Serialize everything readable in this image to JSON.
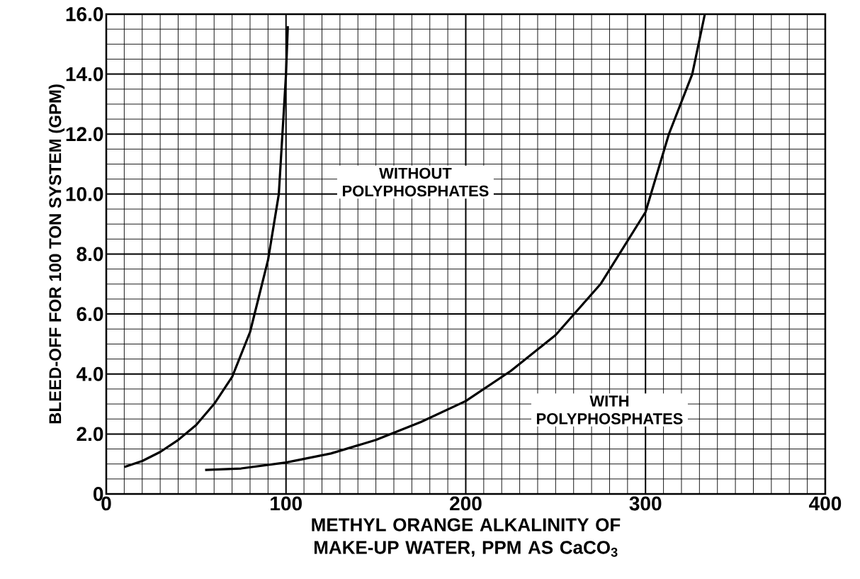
{
  "chart_data": {
    "type": "line",
    "xlabel": "METHYL ORANGE ALKALINITY OF MAKE-UP WATER, PPM AS CaCO$_{3}$",
    "ylabel": "BLEED-OFF FOR 100 TON SYSTEM (GPM)",
    "series": [
      {
        "color": "#000000",
        "x": [
          10,
          20,
          30,
          40,
          50,
          60,
          70,
          80,
          90,
          96,
          98,
          100,
          101
        ],
        "values": [
          0.9,
          1.1,
          1.4,
          1.8,
          2.3,
          3.0,
          3.9,
          5.4,
          7.8,
          10,
          12,
          14,
          15.6
        ]
      },
      {
        "color": "#000000",
        "x": [
          55,
          75,
          100,
          125,
          150,
          175,
          200,
          225,
          250,
          275,
          300,
          313,
          326,
          333
        ],
        "values": [
          0.8,
          0.85,
          1.05,
          1.35,
          1.8,
          2.4,
          3.1,
          4.1,
          5.3,
          7.0,
          9.4,
          12,
          14,
          16
        ]
      }
    ],
    "annotations": [
      "WITHOUT POLYPHOSPHATES",
      "WITH POLYPHOSPHATES"
    ],
    "xlim": [
      0,
      400
    ],
    "ylim": [
      0,
      16
    ],
    "xticks": [
      0,
      100,
      200,
      300,
      400
    ],
    "yticks": [
      0,
      {
        "value": 2,
        "label": "2.0"
      },
      {
        "value": 4,
        "label": "4.0"
      },
      {
        "value": 6,
        "label": "6.0"
      },
      {
        "value": 8,
        "label": "8.0"
      },
      {
        "value": 10,
        "label": "10.0"
      },
      {
        "value": 12,
        "label": "12.0"
      },
      {
        "value": 14,
        "label": "14.0"
      },
      {
        "value": 16,
        "label": "16.0"
      }
    ],
    "grid": true,
    "marker": "none",
    "line_style": "solid"
  }
}
